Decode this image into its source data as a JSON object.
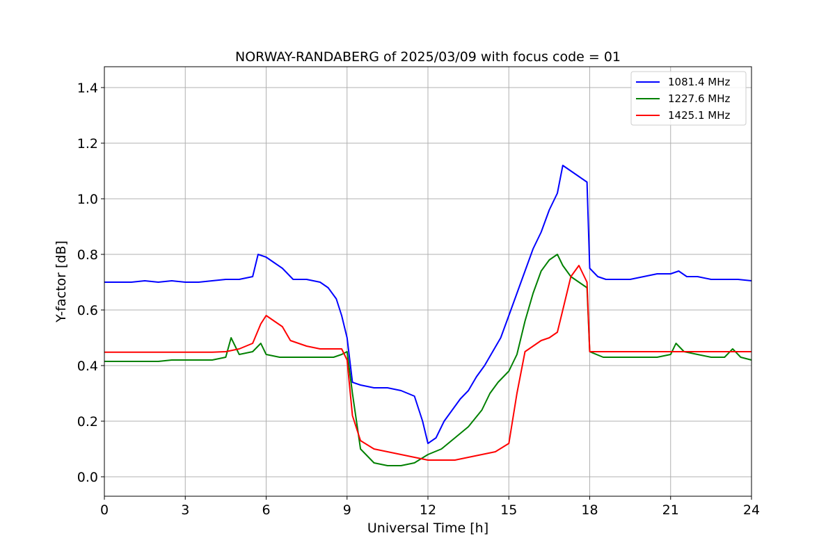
{
  "chart_data": {
    "type": "line",
    "title": "NORWAY-RANDABERG of 2025/03/09 with focus code = 01",
    "xlabel": "Universal Time [h]",
    "ylabel": "Y-factor [dB]",
    "xlim": [
      0,
      24
    ],
    "ylim": [
      -0.07,
      1.475
    ],
    "xticks": [
      0,
      3,
      6,
      9,
      12,
      15,
      18,
      21,
      24
    ],
    "yticks": [
      0.0,
      0.2,
      0.4,
      0.6,
      0.8,
      1.0,
      1.2,
      1.4
    ],
    "xtick_labels": [
      "0",
      "3",
      "6",
      "9",
      "12",
      "15",
      "18",
      "21",
      "24"
    ],
    "ytick_labels": [
      "0.0",
      "0.2",
      "0.4",
      "0.6",
      "0.8",
      "1.0",
      "1.2",
      "1.4"
    ],
    "grid": true,
    "legend_position": "top-right",
    "series": [
      {
        "name": "1081.4 MHz",
        "color": "#0000ff",
        "x": [
          0,
          0.5,
          1,
          1.5,
          2,
          2.5,
          3,
          3.5,
          4,
          4.5,
          5,
          5.5,
          5.7,
          6,
          6.3,
          6.6,
          7,
          7.5,
          8,
          8.3,
          8.6,
          8.8,
          9,
          9.2,
          9.5,
          10,
          10.5,
          11,
          11.5,
          11.8,
          12,
          12.3,
          12.6,
          12.9,
          13.2,
          13.5,
          13.8,
          14.1,
          14.4,
          14.7,
          15,
          15.3,
          15.6,
          15.9,
          16.2,
          16.5,
          16.8,
          17,
          17.3,
          17.6,
          17.9,
          18,
          18.3,
          18.6,
          19,
          19.5,
          20,
          20.5,
          21,
          21.3,
          21.6,
          22,
          22.5,
          23,
          23.5,
          24
        ],
        "y": [
          0.7,
          0.7,
          0.7,
          0.705,
          0.7,
          0.705,
          0.7,
          0.7,
          0.705,
          0.71,
          0.71,
          0.72,
          0.8,
          0.79,
          0.77,
          0.75,
          0.71,
          0.71,
          0.7,
          0.68,
          0.64,
          0.58,
          0.5,
          0.34,
          0.33,
          0.32,
          0.32,
          0.31,
          0.29,
          0.2,
          0.12,
          0.14,
          0.2,
          0.24,
          0.28,
          0.31,
          0.36,
          0.4,
          0.45,
          0.5,
          0.58,
          0.66,
          0.74,
          0.82,
          0.88,
          0.96,
          1.02,
          1.12,
          1.1,
          1.08,
          1.06,
          0.75,
          0.72,
          0.71,
          0.71,
          0.71,
          0.72,
          0.73,
          0.73,
          0.74,
          0.72,
          0.72,
          0.71,
          0.71,
          0.71,
          0.705
        ]
      },
      {
        "name": "1227.6 MHz",
        "color": "#008000",
        "x": [
          0,
          0.5,
          1,
          1.5,
          2,
          2.5,
          3,
          3.5,
          4,
          4.5,
          4.7,
          5,
          5.5,
          5.8,
          6,
          6.5,
          7,
          7.5,
          8,
          8.5,
          8.8,
          9,
          9.2,
          9.5,
          10,
          10.5,
          11,
          11.5,
          12,
          12.5,
          13,
          13.5,
          14,
          14.3,
          14.6,
          15,
          15.3,
          15.6,
          15.9,
          16.2,
          16.5,
          16.8,
          17,
          17.3,
          17.6,
          17.9,
          18,
          18.5,
          19,
          19.5,
          20,
          20.5,
          21,
          21.2,
          21.5,
          22,
          22.5,
          23,
          23.3,
          23.6,
          24
        ],
        "y": [
          0.415,
          0.415,
          0.415,
          0.415,
          0.415,
          0.42,
          0.42,
          0.42,
          0.42,
          0.43,
          0.5,
          0.44,
          0.45,
          0.48,
          0.44,
          0.43,
          0.43,
          0.43,
          0.43,
          0.43,
          0.44,
          0.45,
          0.3,
          0.1,
          0.05,
          0.04,
          0.04,
          0.05,
          0.08,
          0.1,
          0.14,
          0.18,
          0.24,
          0.3,
          0.34,
          0.38,
          0.44,
          0.56,
          0.66,
          0.74,
          0.78,
          0.8,
          0.76,
          0.72,
          0.7,
          0.68,
          0.45,
          0.43,
          0.43,
          0.43,
          0.43,
          0.43,
          0.44,
          0.48,
          0.45,
          0.44,
          0.43,
          0.43,
          0.46,
          0.43,
          0.42
        ]
      },
      {
        "name": "1425.1 MHz",
        "color": "#ff0000",
        "x": [
          0,
          0.5,
          1,
          1.5,
          2,
          2.5,
          3,
          3.5,
          4,
          4.5,
          5,
          5.5,
          5.8,
          6,
          6.3,
          6.6,
          6.9,
          7.2,
          7.5,
          8,
          8.5,
          8.8,
          9,
          9.2,
          9.5,
          10,
          10.5,
          11,
          11.5,
          12,
          12.5,
          13,
          13.5,
          14,
          14.5,
          15,
          15.3,
          15.6,
          15.9,
          16.2,
          16.5,
          16.8,
          17,
          17.3,
          17.6,
          17.9,
          18,
          18.5,
          19,
          19.5,
          20,
          20.5,
          21,
          21.5,
          22,
          22.5,
          23,
          23.5,
          24
        ],
        "y": [
          0.448,
          0.448,
          0.448,
          0.448,
          0.448,
          0.448,
          0.448,
          0.448,
          0.448,
          0.45,
          0.46,
          0.48,
          0.55,
          0.58,
          0.56,
          0.54,
          0.49,
          0.48,
          0.47,
          0.46,
          0.46,
          0.46,
          0.42,
          0.22,
          0.13,
          0.1,
          0.09,
          0.08,
          0.07,
          0.06,
          0.06,
          0.06,
          0.07,
          0.08,
          0.09,
          0.12,
          0.3,
          0.45,
          0.47,
          0.49,
          0.5,
          0.52,
          0.6,
          0.72,
          0.76,
          0.7,
          0.45,
          0.45,
          0.45,
          0.45,
          0.45,
          0.45,
          0.45,
          0.45,
          0.45,
          0.45,
          0.45,
          0.45,
          0.45
        ]
      }
    ]
  }
}
